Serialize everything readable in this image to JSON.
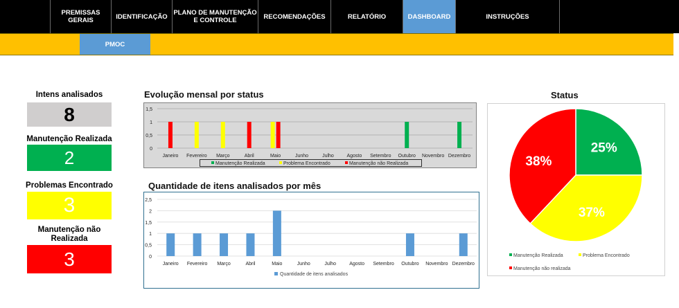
{
  "nav": {
    "items": [
      {
        "label1": "PREMISSAS",
        "label2": "GERAIS"
      },
      {
        "label1": "IDENTIFICAÇÃO",
        "label2": ""
      },
      {
        "label1": "PLANO DE MANUTENÇÃO",
        "label2": "E CONTROLE"
      },
      {
        "label1": "RECOMENDAÇÕES",
        "label2": ""
      },
      {
        "label1": "RELATÓRIO",
        "label2": ""
      },
      {
        "label1": "DASHBOARD",
        "label2": ""
      },
      {
        "label1": "INSTRUÇÕES",
        "label2": ""
      }
    ],
    "active_label": "DASHBOARD",
    "sub_tab": "PMOC"
  },
  "kpis": [
    {
      "label": "Intens analisados",
      "value": "8",
      "color": "#d0cece",
      "text_color": "#000000"
    },
    {
      "label": "Manutenção Realizada",
      "value": "2",
      "color": "#00b050",
      "text_color": "#ffffff"
    },
    {
      "label": "Problemas Encontrado",
      "value": "3",
      "color": "#ffff00",
      "text_color": "#ffffff"
    },
    {
      "label": "Manutenção não",
      "label2": "Realizada",
      "value": "3",
      "color": "#ff0000",
      "text_color": "#ffffff"
    }
  ],
  "colors": {
    "green": "#00b050",
    "yellow": "#ffff00",
    "red": "#ff0000",
    "blue": "#5b9bd5"
  },
  "chart_data": [
    {
      "type": "bar",
      "title": "Evolução mensal por status",
      "categories": [
        "Janeiro",
        "Fevereiro",
        "Março",
        "Abril",
        "Maio",
        "Junho",
        "Julho",
        "Agosto",
        "Setembro",
        "Outubro",
        "Novembro",
        "Dezembro"
      ],
      "series": [
        {
          "name": "Manutenção Realizada",
          "color": "#00b050",
          "values": [
            0,
            0,
            0,
            0,
            0,
            0,
            0,
            0,
            0,
            1,
            0,
            1
          ]
        },
        {
          "name": "Problema Encontrado",
          "color": "#ffff00",
          "values": [
            0,
            1,
            1,
            0,
            1,
            0,
            0,
            0,
            0,
            0,
            0,
            0
          ]
        },
        {
          "name": "Manutenção não Realizada",
          "color": "#ff0000",
          "values": [
            1,
            0,
            0,
            1,
            1,
            0,
            0,
            0,
            0,
            0,
            0,
            0
          ]
        }
      ],
      "yticks": [
        "0",
        "0,5",
        "1",
        "1,5"
      ],
      "ylim": [
        0,
        1.5
      ],
      "grid": true,
      "legend": "bottom"
    },
    {
      "type": "bar",
      "title": "Quantidade de itens analisados por mês",
      "categories": [
        "Janeiro",
        "Fevereiro",
        "Março",
        "Abril",
        "Maio",
        "Junho",
        "Julho",
        "Agosto",
        "Setembro",
        "Outubro",
        "Novembro",
        "Dezembro"
      ],
      "series": [
        {
          "name": "Quantidade de itens analisados",
          "color": "#5b9bd5",
          "values": [
            1,
            1,
            1,
            1,
            2,
            0,
            0,
            0,
            0,
            1,
            0,
            1
          ]
        }
      ],
      "yticks": [
        "0",
        "0,5",
        "1",
        "1,5",
        "2",
        "2,5"
      ],
      "ylim": [
        0,
        2.5
      ],
      "grid": true,
      "legend": "bottom"
    },
    {
      "type": "pie",
      "title": "Status",
      "slices": [
        {
          "name": "Manutenção Realizada",
          "value": 25,
          "label": "25%",
          "color": "#00b050"
        },
        {
          "name": "Problema Encontrado",
          "value": 37,
          "label": "37%",
          "color": "#ffff00"
        },
        {
          "name": "Manutenção não realizada",
          "value": 38,
          "label": "38%",
          "color": "#ff0000"
        }
      ],
      "legend": "bottom"
    }
  ]
}
